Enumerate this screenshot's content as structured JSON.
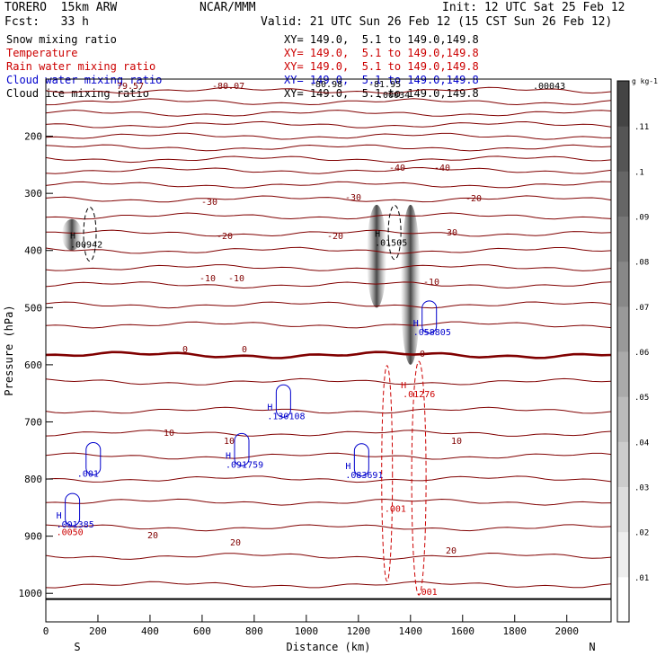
{
  "header": {
    "model": "TORERO  15km ARW",
    "center": "NCAR/MMM",
    "init": "Init: 12 UTC Sat 25 Feb 12",
    "fcst": "Fcst:   33 h",
    "valid": "Valid: 21 UTC Sun 26 Feb 12 (15 CST Sun 26 Feb 12)"
  },
  "fields": [
    {
      "name": "Snow mixing ratio",
      "xy": "XY= 149.0,  5.1 to 149.0,149.8",
      "color": "#000000"
    },
    {
      "name": "Temperature",
      "xy": "XY= 149.0,  5.1 to 149.0,149.8",
      "color": "#cc0000"
    },
    {
      "name": "Rain water mixing ratio",
      "xy": "XY= 149.0,  5.1 to 149.0,149.8",
      "color": "#cc0000"
    },
    {
      "name": "Cloud water mixing ratio",
      "xy": "XY= 149.0,  5.1 to 149.0,149.8",
      "color": "#0000cc"
    },
    {
      "name": "Cloud ice mixing ratio",
      "xy": "XY= 149.0,  5.1 to 149.0,149.8",
      "color": "#000000"
    }
  ],
  "chart_data": {
    "type": "contour-cross-section",
    "xlabel": "Distance (km)",
    "ylabel": "Pressure (hPa)",
    "xlim": [
      0,
      2170
    ],
    "ylim": [
      1050,
      100
    ],
    "xticks": [
      0,
      200,
      400,
      600,
      800,
      1000,
      1200,
      1400,
      1600,
      1800,
      2000
    ],
    "yticks": [
      200,
      300,
      400,
      500,
      600,
      700,
      800,
      900,
      1000
    ],
    "endpoints": {
      "left": "S",
      "right": "N"
    },
    "temperature_contours": [
      {
        "value": 0,
        "pressure": 583
      },
      {
        "value": -10,
        "pressure": 455
      },
      {
        "value": -20,
        "pressure": 375
      },
      {
        "value": -30,
        "pressure": 335
      },
      {
        "value": -40,
        "pressure": 265
      },
      {
        "value": 10,
        "pressure": 740
      },
      {
        "value": 20,
        "pressure": 900
      }
    ],
    "temperature_labels": [
      "-30",
      "-20",
      "-10",
      "-10",
      "-40",
      "-40",
      "-30",
      "-20",
      "-20",
      "-30",
      "-10",
      "0",
      "0",
      "0",
      "10",
      "10",
      "10",
      "20",
      "20",
      "20"
    ],
    "snow_maxima": [
      {
        "label": "H",
        "value": ".00942",
        "x": 100,
        "pressure": 395
      },
      {
        "label": "H",
        "value": ".01505",
        "x": 1270,
        "pressure": 392
      }
    ],
    "cloud_water_maxima": [
      {
        "label": "H",
        "value": ".058805",
        "x": 1410,
        "pressure": 548
      },
      {
        "label": "H",
        "value": ".130108",
        "x": 850,
        "pressure": 695
      },
      {
        "label": "H",
        "value": ".091759",
        "x": 690,
        "pressure": 780
      },
      {
        "label": "H",
        "value": ".083691",
        "x": 1150,
        "pressure": 798
      },
      {
        "label": "H",
        "value": ".001385",
        "x": 40,
        "pressure": 885
      },
      {
        "label": "",
        "value": ".001",
        "x": 120,
        "pressure": 796
      }
    ],
    "rain_maxima": [
      {
        "label": "H",
        "value": ".01276",
        "x": 1370,
        "pressure": 657
      },
      {
        "label": "",
        "value": ".001",
        "x": 1300,
        "pressure": 857
      },
      {
        "label": "",
        "value": ".0050",
        "x": 40,
        "pressure": 898
      },
      {
        "label": "",
        "value": ".001",
        "x": 1420,
        "pressure": 1003
      }
    ],
    "ice_mixing_labels": [
      "-80.07",
      "79.57",
      "-80.98",
      "-81.95",
      ".00034",
      ".00043"
    ],
    "shaded_cores": [
      {
        "x": 1270,
        "p_top": 320,
        "p_bottom": 500
      },
      {
        "x": 1400,
        "p_top": 320,
        "p_bottom": 600
      },
      {
        "x": 100,
        "p_top": 345,
        "p_bottom": 400
      }
    ],
    "colorbar": {
      "unit": "g kg-1",
      "ticks": [
        ".01",
        ".02",
        ".03",
        ".04",
        ".05",
        ".06",
        ".07",
        ".08",
        ".09",
        ".1",
        ".11"
      ],
      "values": [
        0.01,
        0.02,
        0.03,
        0.04,
        0.05,
        0.06,
        0.07,
        0.08,
        0.09,
        0.1,
        0.11
      ]
    }
  }
}
